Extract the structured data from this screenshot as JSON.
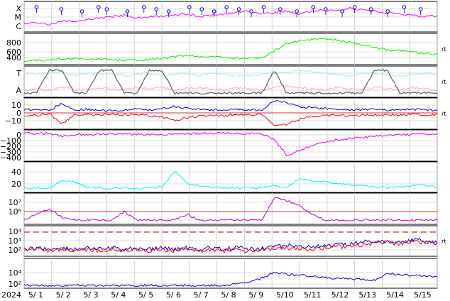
{
  "chart_data": {
    "type": "line",
    "year_label": "2024",
    "x_range": [
      "2024-05-01T00:00",
      "2024-05-15T24:00"
    ],
    "x_ticks": [
      "5/ 1",
      "5/ 2",
      "5/ 3",
      "5/ 4",
      "5/ 5",
      "5/ 6",
      "5/ 7",
      "5/ 8",
      "5/ 9",
      "5/10",
      "5/11",
      "5/12",
      "5/13",
      "5/14",
      "5/15"
    ],
    "grid": true,
    "panels": [
      {
        "id": "xray",
        "y_tick_labels": [
          "X",
          "M",
          "C"
        ],
        "scale": "log-class",
        "series": [
          {
            "color": "#ff00ff",
            "values": [
              0.25,
              0.3,
              0.2,
              0.35,
              0.3,
              0.4,
              0.45,
              0.5,
              0.55,
              0.45,
              0.5,
              0.5,
              0.55,
              0.6,
              0.5,
              0.55,
              0.6,
              0.65,
              0.7,
              0.6,
              0.65,
              0.7,
              0.6,
              0.7,
              0.75,
              0.7,
              0.8,
              0.75,
              0.7,
              0.65,
              0.6,
              0.55,
              0.5,
              0.55
            ]
          }
        ],
        "flare_markers": [
          0.03,
          0.09,
          0.14,
          0.18,
          0.2,
          0.25,
          0.29,
          0.32,
          0.35,
          0.4,
          0.43,
          0.46,
          0.49,
          0.52,
          0.55,
          0.58,
          0.62,
          0.66,
          0.7,
          0.73,
          0.77,
          0.8,
          0.84,
          0.88,
          0.92,
          0.96
        ]
      },
      {
        "id": "wind-speed",
        "y_tick_labels": [
          "400",
          "600",
          "800"
        ],
        "y_range": [
          300,
          950
        ],
        "series": [
          {
            "color": "#00ee00",
            "values": [
              360,
              360,
              370,
              400,
              410,
              400,
              390,
              380,
              370,
              360,
              380,
              420,
              450,
              470,
              460,
              440,
              430,
              420,
              410,
              420,
              580,
              760,
              800,
              850,
              860,
              830,
              780,
              720,
              660,
              610,
              590,
              560,
              530,
              500
            ]
          }
        ]
      },
      {
        "id": "temp-density",
        "y_tick_labels": [
          "T",
          "A"
        ],
        "series": [
          {
            "color": "#a8e6ff",
            "values": [
              0.8,
              0.75,
              0.8,
              0.85,
              0.7,
              0.8,
              0.75,
              0.8,
              0.7,
              0.75,
              0.8,
              0.7,
              0.75,
              0.8,
              0.7,
              0.8,
              0.75,
              0.7,
              0.7,
              0.75,
              0.8,
              0.85,
              0.9,
              0.85,
              0.8,
              0.75,
              0.7,
              0.8,
              0.8,
              0.75,
              0.7,
              0.75,
              0.8,
              0.75
            ]
          },
          {
            "color": "#ffa0e8",
            "values": [
              0.2,
              0.25,
              0.2,
              0.3,
              0.25,
              0.2,
              0.3,
              0.25,
              0.2,
              0.3,
              0.25,
              0.3,
              0.2,
              0.25,
              0.3,
              0.25,
              0.2,
              0.3,
              0.25,
              0.2,
              0.3,
              0.35,
              0.3,
              0.25,
              0.2,
              0.3,
              0.25,
              0.2,
              0.3,
              0.25,
              0.2,
              0.3,
              0.25,
              0.2
            ]
          },
          {
            "color": "#606060",
            "values": [
              0.1,
              0.1,
              0.9,
              0.9,
              0.1,
              0.1,
              0.9,
              0.9,
              0.1,
              0.1,
              0.9,
              0.9,
              0.1,
              0.1,
              0.1,
              0.1,
              0.1,
              0.1,
              0.1,
              0.1,
              0.9,
              0.1,
              0.1,
              0.1,
              0.1,
              0.1,
              0.1,
              0.1,
              0.9,
              0.9,
              0.1,
              0.1,
              0.1,
              0.1
            ]
          }
        ]
      },
      {
        "id": "imf",
        "y_tick_labels": [
          "10",
          "0",
          "−10"
        ],
        "y_range": [
          -20,
          20
        ],
        "series": [
          {
            "color": "#0000dd",
            "values": [
              5,
              6,
              4,
              15,
              5,
              6,
              5,
              4,
              5,
              6,
              5,
              7,
              10,
              8,
              6,
              5,
              5,
              6,
              5,
              5,
              18,
              15,
              10,
              8,
              7,
              6,
              5,
              6,
              6,
              5,
              5,
              6,
              5,
              5
            ]
          },
          {
            "color": "#ff0000",
            "values": [
              -2,
              -3,
              0,
              -15,
              -2,
              -1,
              -3,
              0,
              -2,
              -1,
              -3,
              -5,
              -10,
              -6,
              -3,
              -2,
              -3,
              -1,
              -2,
              -1,
              -18,
              -15,
              -8,
              -4,
              -3,
              -2,
              -3,
              -2,
              -2,
              -1,
              -2,
              -1,
              -2,
              -2
            ]
          }
        ]
      },
      {
        "id": "dst",
        "y_tick_labels": [
          "0",
          "−100",
          "−200",
          "−300",
          "−400"
        ],
        "y_range": [
          -450,
          20
        ],
        "series": [
          {
            "color": "#dd00dd",
            "values": [
              -10,
              -12,
              -15,
              -60,
              -40,
              -30,
              -25,
              -20,
              -25,
              -30,
              -40,
              -30,
              -20,
              -15,
              -15,
              -10,
              -10,
              -12,
              -15,
              -20,
              -120,
              -380,
              -300,
              -220,
              -160,
              -120,
              -100,
              -80,
              -60,
              -45,
              -35,
              -30,
              -25,
              -20
            ]
          }
        ]
      },
      {
        "id": "kp",
        "y_tick_labels": [
          "20",
          "40"
        ],
        "y_range": [
          0,
          55
        ],
        "series": [
          {
            "color": "#00eeee",
            "values": [
              5,
              6,
              5,
              20,
              18,
              8,
              6,
              5,
              6,
              5,
              6,
              8,
              40,
              15,
              10,
              8,
              6,
              5,
              6,
              7,
              10,
              8,
              25,
              20,
              18,
              15,
              12,
              10,
              8,
              6,
              8,
              10,
              12,
              8
            ]
          }
        ]
      },
      {
        "id": "electron-flux",
        "y_tick_labels": [
          "10⁶",
          "10⁷"
        ],
        "series": [
          {
            "color": "#bb00bb",
            "values": [
              0.1,
              0.3,
              0.5,
              0.2,
              0.1,
              0.1,
              0.1,
              0.1,
              0.4,
              0.1,
              0.1,
              0.1,
              0.1,
              0.3,
              0.1,
              0.1,
              0.1,
              0.1,
              0.1,
              0.1,
              0.9,
              0.8,
              0.6,
              0.3,
              0.1,
              0.1,
              0.1,
              0.1,
              0.1,
              0.1,
              0.1,
              0.1,
              0.1,
              0.1
            ]
          }
        ]
      },
      {
        "id": "proton-flux",
        "y_tick_labels": [
          "10²",
          "10³",
          "10⁴"
        ],
        "series": [
          {
            "color": "#0000dd",
            "values": [
              0.2,
              0.25,
              0.2,
              0.25,
              0.2,
              0.25,
              0.2,
              0.25,
              0.2,
              0.25,
              0.2,
              0.25,
              0.2,
              0.25,
              0.2,
              0.25,
              0.2,
              0.25,
              0.2,
              0.25,
              0.3,
              0.35,
              0.3,
              0.3,
              0.3,
              0.35,
              0.4,
              0.45,
              0.5,
              0.5,
              0.45,
              0.55,
              0.5,
              0.45
            ]
          },
          {
            "color": "#ff0000",
            "values": [
              0.15,
              0.2,
              0.15,
              0.2,
              0.15,
              0.2,
              0.15,
              0.2,
              0.15,
              0.2,
              0.15,
              0.2,
              0.15,
              0.2,
              0.15,
              0.2,
              0.15,
              0.2,
              0.15,
              0.2,
              0.2,
              0.25,
              0.2,
              0.2,
              0.25,
              0.3,
              0.3,
              0.35,
              0.45,
              0.45,
              0.4,
              0.5,
              0.45,
              0.4
            ]
          }
        ]
      },
      {
        "id": "proton-high",
        "y_tick_labels": [
          "10²",
          "10⁴"
        ],
        "series": [
          {
            "color": "#0000dd",
            "values": [
              0.05,
              0.05,
              0.05,
              0.05,
              0.05,
              0.05,
              0.05,
              0.05,
              0.05,
              0.05,
              0.05,
              0.05,
              0.05,
              0.05,
              0.05,
              0.05,
              0.05,
              0.1,
              0.2,
              0.3,
              0.55,
              0.45,
              0.42,
              0.4,
              0.35,
              0.3,
              0.3,
              0.28,
              0.25,
              0.5,
              0.45,
              0.42,
              0.4,
              0.38
            ]
          }
        ]
      }
    ]
  },
  "side_marker": "rt"
}
